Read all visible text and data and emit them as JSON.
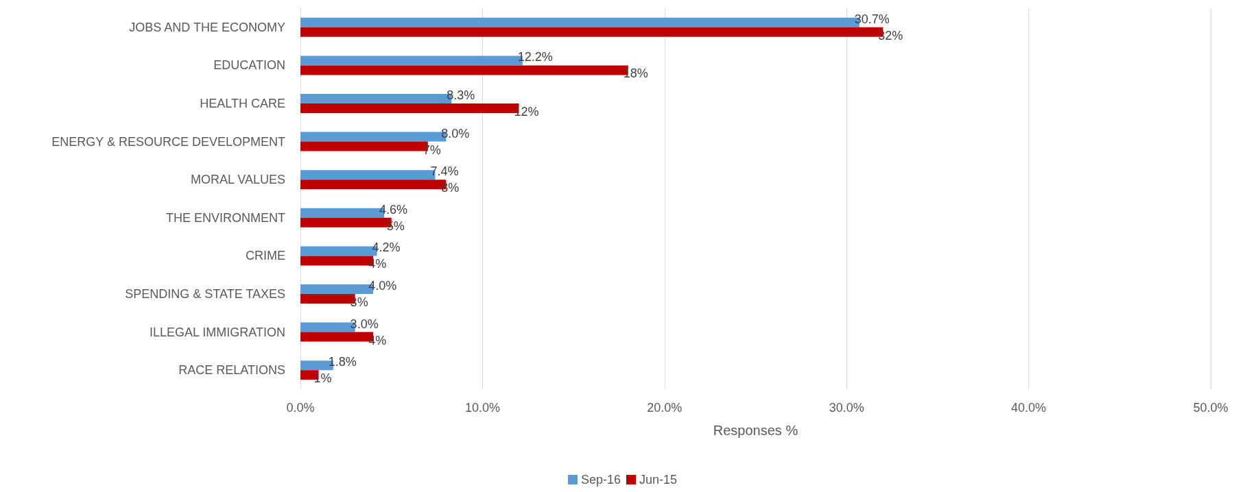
{
  "chart_data": {
    "type": "bar",
    "orientation": "horizontal",
    "xlabel": "Responses %",
    "categories": [
      "JOBS AND THE ECONOMY",
      "EDUCATION",
      "HEALTH CARE",
      "ENERGY & RESOURCE DEVELOPMENT",
      "MORAL VALUES",
      "THE ENVIRONMENT",
      "CRIME",
      "SPENDING & STATE TAXES",
      "ILLEGAL IMMIGRATION",
      "RACE RELATIONS"
    ],
    "series": [
      {
        "name": "Sep-16",
        "color": "#5b9bd5",
        "values": [
          30.7,
          12.2,
          8.3,
          8.0,
          7.4,
          4.6,
          4.2,
          4.0,
          3.0,
          1.8
        ],
        "value_labels": [
          "30.7%",
          "12.2%",
          "8.3%",
          "8.0%",
          "7.4%",
          "4.6%",
          "4.2%",
          "4.0%",
          "3.0%",
          "1.8%"
        ]
      },
      {
        "name": "Jun-15",
        "color": "#c00000",
        "values": [
          32,
          18,
          12,
          7,
          8,
          5,
          4,
          3,
          4,
          1
        ],
        "value_labels": [
          "32%",
          "18%",
          "12%",
          "7%",
          "8%",
          "5%",
          "4%",
          "3%",
          "4%",
          "1%"
        ]
      }
    ],
    "xlim": [
      0,
      50
    ],
    "xticks": [
      {
        "value": 0,
        "label": "0.0%"
      },
      {
        "value": 10,
        "label": "10.0%"
      },
      {
        "value": 20,
        "label": "20.0%"
      },
      {
        "value": 30,
        "label": "30.0%"
      },
      {
        "value": 40,
        "label": "40.0%"
      },
      {
        "value": 50,
        "label": "50.0%"
      }
    ],
    "grid": "x",
    "legend": "bottom"
  }
}
